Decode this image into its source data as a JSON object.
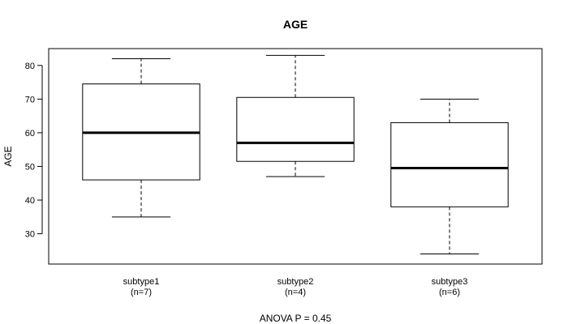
{
  "chart_data": {
    "type": "box",
    "title": "AGE",
    "xlabel": "",
    "ylabel": "AGE",
    "ylim": [
      21,
      85
    ],
    "yticks": [
      30,
      40,
      50,
      60,
      70,
      80
    ],
    "grid": false,
    "legend": "none",
    "categories": [
      {
        "label": "subtype1",
        "n_label": "(n=7)"
      },
      {
        "label": "subtype2",
        "n_label": "(n=4)"
      },
      {
        "label": "subtype3",
        "n_label": "(n=6)"
      }
    ],
    "boxes": [
      {
        "whisker_low": 35,
        "q1": 46,
        "median": 60,
        "q3": 74.5,
        "whisker_high": 82
      },
      {
        "whisker_low": 47,
        "q1": 51.5,
        "median": 57,
        "q3": 70.5,
        "whisker_high": 83
      },
      {
        "whisker_low": 24,
        "q1": 38,
        "median": 49.5,
        "q3": 63,
        "whisker_high": 70
      }
    ],
    "footnote": "ANOVA P = 0.45"
  }
}
